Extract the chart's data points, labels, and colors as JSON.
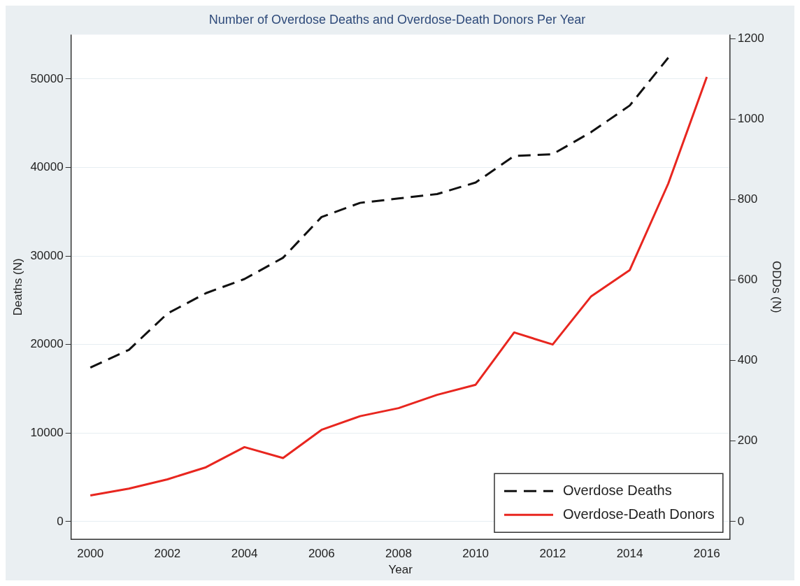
{
  "chart_data": {
    "type": "line",
    "title": "Number of Overdose Deaths and Overdose-Death Donors Per Year",
    "xlabel": "Year",
    "ylabel": "Deaths (N)",
    "y2label": "ODDs (N)",
    "x": [
      2000,
      2001,
      2002,
      2003,
      2004,
      2005,
      2006,
      2007,
      2008,
      2009,
      2010,
      2011,
      2012,
      2013,
      2014,
      2015,
      2016
    ],
    "series": [
      {
        "name": "Overdose Deaths",
        "color": "#111111",
        "line_style": "dashed",
        "values": [
          17400,
          19400,
          23500,
          25800,
          27400,
          29800,
          34400,
          36000,
          36500,
          37000,
          38300,
          41300,
          41500,
          44000,
          47000,
          52400,
          null
        ]
      },
      {
        "name": "Overdose-Death Donors",
        "color": "#e8261f",
        "line_style": "solid",
        "axis": "y2",
        "values": [
          65,
          82,
          105,
          135,
          185,
          158,
          228,
          262,
          282,
          315,
          340,
          470,
          440,
          560,
          625,
          840,
          1105
        ]
      }
    ],
    "xlim": [
      1999.5,
      2016.6
    ],
    "xticks": [
      2000,
      2002,
      2004,
      2006,
      2008,
      2010,
      2012,
      2014,
      2016
    ],
    "ylim": [
      -2000,
      55000
    ],
    "yticks": [
      0,
      10000,
      20000,
      30000,
      40000,
      50000
    ],
    "y2lim": [
      -44,
      1210
    ],
    "y2ticks": [
      0,
      200,
      400,
      600,
      800,
      1000,
      1200
    ],
    "grid": "y",
    "legend": "bottom right",
    "marker": "none"
  }
}
